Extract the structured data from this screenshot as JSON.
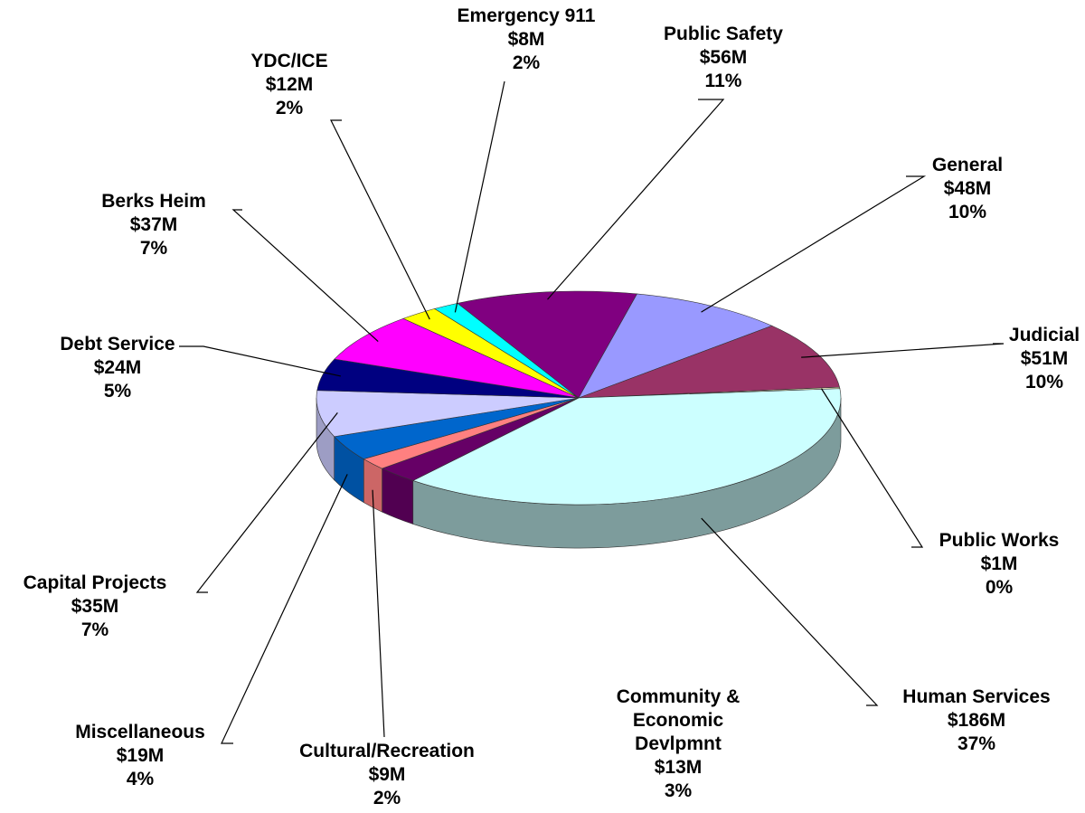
{
  "chart_data": {
    "type": "pie3d",
    "categories": [
      "Public Safety",
      "General",
      "Judicial",
      "Public Works",
      "Human Services",
      "Community & Economic Devlpmnt",
      "Cultural/Recreation",
      "Miscellaneous",
      "Capital Projects",
      "Debt Service",
      "Berks Heim",
      "YDC/ICE",
      "Emergency 911"
    ],
    "values": [
      56,
      48,
      51,
      1,
      186,
      13,
      9,
      19,
      35,
      24,
      37,
      12,
      8
    ],
    "value_labels": [
      "$56M",
      "$48M",
      "$51M",
      "$1M",
      "$186M",
      "$13M",
      "$9M",
      "$19M",
      "$35M",
      "$24M",
      "$37M",
      "$12M",
      "$8M"
    ],
    "percentages": [
      11,
      10,
      10,
      0,
      37,
      3,
      2,
      4,
      7,
      5,
      7,
      2,
      2
    ],
    "percentage_labels": [
      "11%",
      "10%",
      "10%",
      "0%",
      "37%",
      "3%",
      "2%",
      "4%",
      "7%",
      "5%",
      "7%",
      "2%",
      "2%"
    ],
    "colors": [
      "#800080",
      "#9999ff",
      "#993366",
      "#ffffcc",
      "#ccffff",
      "#660066",
      "#ff8080",
      "#0066cc",
      "#ccccff",
      "#000080",
      "#ff00ff",
      "#ffff00",
      "#00ffff"
    ]
  }
}
